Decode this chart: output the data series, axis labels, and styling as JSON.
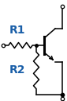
{
  "bg_color": "#ffffff",
  "line_color": "#000000",
  "label_color": "#1a5fa8",
  "R1_label": "R1",
  "R2_label": "R2",
  "fig_width": 0.85,
  "fig_height": 1.27,
  "dpi": 100
}
